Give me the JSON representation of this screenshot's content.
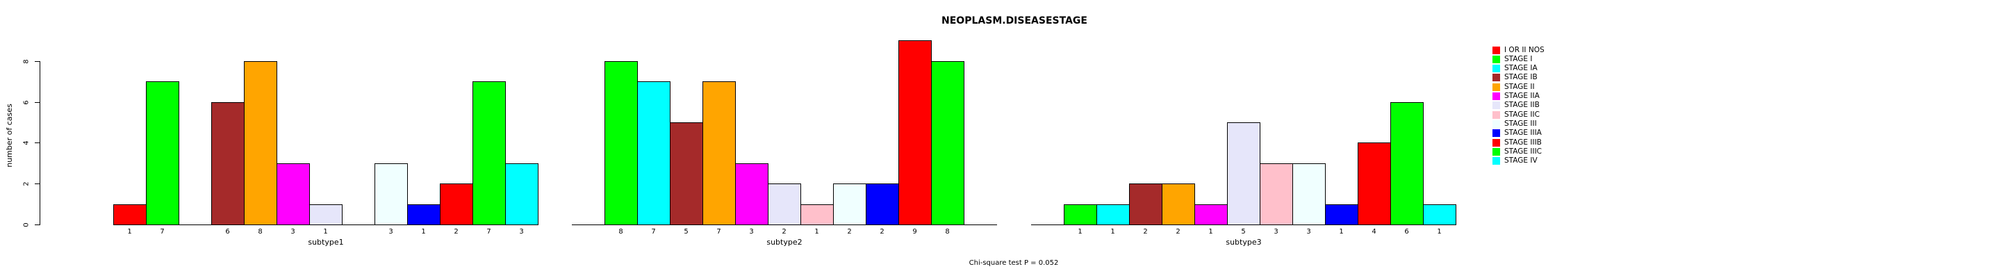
{
  "chart_data": {
    "type": "bar",
    "title": "NEOPLASM.DISEASESTAGE",
    "ylabel": "number of cases",
    "xlabel": "",
    "footer": "Chi-square test P = 0.052",
    "ylim": [
      0,
      9
    ],
    "y_ticks": [
      0,
      2,
      4,
      6,
      8
    ],
    "grid": false,
    "legend_position": "right",
    "bar_borders": "#000000",
    "categories": [
      "I OR II NOS",
      "STAGE I",
      "STAGE IA",
      "STAGE IB",
      "STAGE II",
      "STAGE IIA",
      "STAGE IIB",
      "STAGE IIC",
      "STAGE III",
      "STAGE IIIA",
      "STAGE IIIB",
      "STAGE IIIC",
      "STAGE IV"
    ],
    "colors": [
      "#FF0000",
      "#00FF00",
      "#00FFFF",
      "#A52A2A",
      "#FFA500",
      "#FF00FF",
      "#E6E6FA",
      "#FFC0CB",
      "#F0FFFF",
      "#0000FF",
      "#FF0000",
      "#00FF00",
      "#00FFFF"
    ],
    "series": [
      {
        "name": "subtype1",
        "values": [
          1,
          7,
          0,
          6,
          8,
          3,
          1,
          0,
          3,
          1,
          2,
          7,
          3
        ]
      },
      {
        "name": "subtype2",
        "values": [
          0,
          8,
          7,
          5,
          7,
          3,
          2,
          1,
          2,
          2,
          9,
          8,
          0
        ]
      },
      {
        "name": "subtype3",
        "values": [
          0,
          1,
          1,
          2,
          2,
          1,
          5,
          3,
          3,
          1,
          4,
          6,
          1
        ]
      }
    ],
    "zero_bars_hidden": true,
    "bar_value_labels_shown": true
  }
}
